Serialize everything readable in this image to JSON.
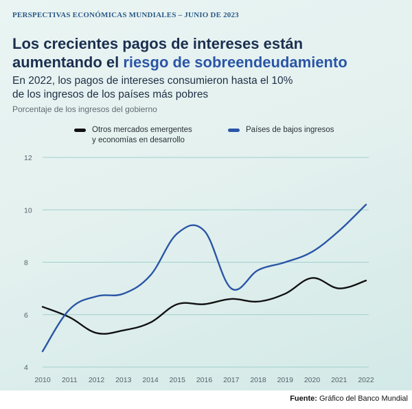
{
  "header": {
    "kicker": "PERSPECTIVAS ECONÓMICAS MUNDIALES – JUNIO DE 2023",
    "title_part1": "Los crecientes pagos de intereses ",
    "title_part2": "están",
    "title_part3": "aumentando el ",
    "title_part4": "riesgo de sobreendeudamiento",
    "subtitle_line1": "En 2022, los pagos de intereses consumieron hasta el 10%",
    "subtitle_line2": "de los ingresos de los países más pobres"
  },
  "footer": {
    "source_label": "Fuente:",
    "source_text": " Gráfico del Banco Mundial"
  },
  "colors": {
    "series_emerging": "#111111",
    "series_low_income": "#2a55a6",
    "grid": "#9fd0cc"
  },
  "chart_data": {
    "type": "line",
    "title": "Los crecientes pagos de intereses están aumentando el riesgo de sobreendeudamiento",
    "ylabel": "Porcentaje de los ingresos del gobierno",
    "xlabel": "",
    "ylim": [
      4,
      12
    ],
    "yticks": [
      "4",
      "6",
      "8",
      "10",
      "12"
    ],
    "categories": [
      "2010",
      "2011",
      "2012",
      "2013",
      "2014",
      "2015",
      "2016",
      "2017",
      "2018",
      "2019",
      "2020",
      "2021",
      "2022"
    ],
    "legend": {
      "emerging_line1": "Otros mercados emergentes",
      "emerging_line2": "y economías en desarrollo",
      "low_income": "Países de bajos ingresos"
    },
    "series": [
      {
        "name": "Otros mercados emergentes y economías en desarrollo",
        "values": [
          6.3,
          5.9,
          5.3,
          5.4,
          5.7,
          6.4,
          6.4,
          6.6,
          6.5,
          6.8,
          7.4,
          7.0,
          7.3
        ]
      },
      {
        "name": "Países de bajos ingresos",
        "values": [
          4.6,
          6.2,
          6.7,
          6.8,
          7.5,
          9.1,
          9.2,
          7.0,
          7.7,
          8.0,
          8.4,
          9.2,
          10.2
        ]
      }
    ]
  }
}
